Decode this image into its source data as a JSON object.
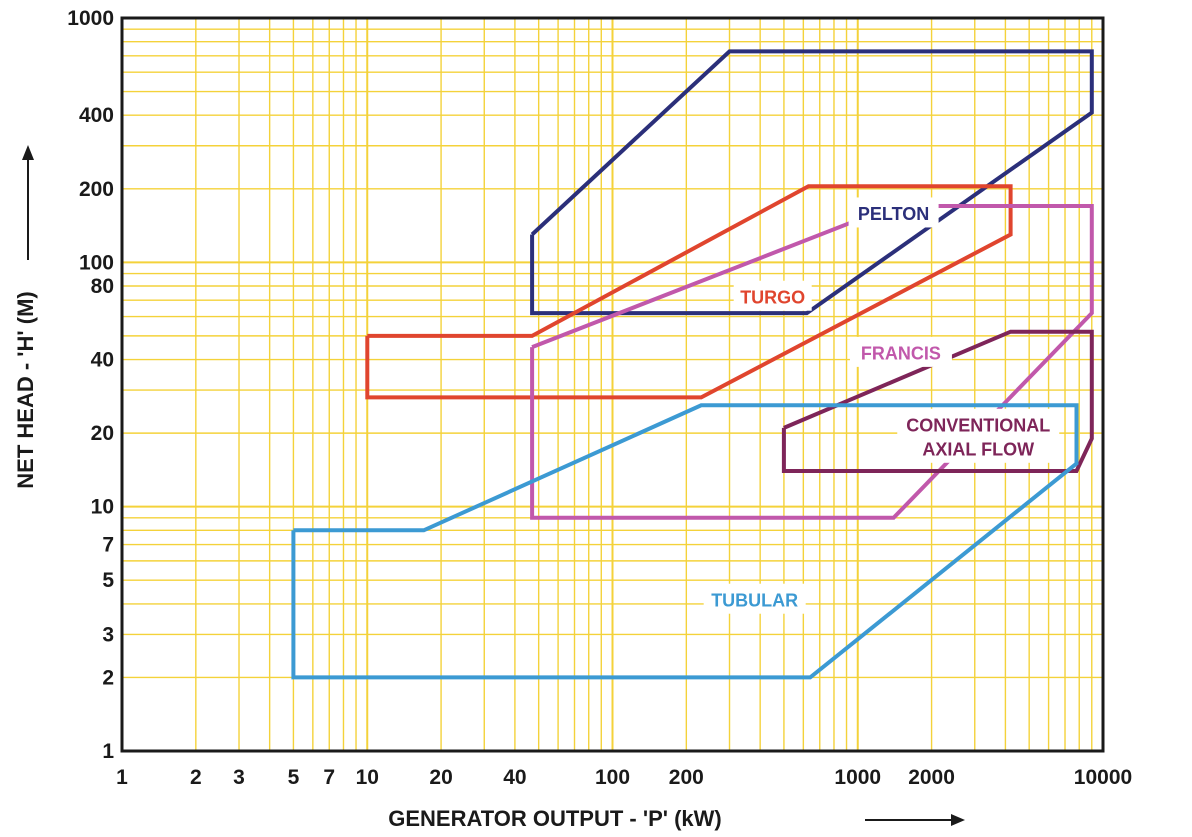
{
  "chart_data": {
    "type": "area",
    "title": "",
    "xlabel": "GENERATOR OUTPUT - 'P' (kW)",
    "ylabel": "NET HEAD - 'H' (M)",
    "xscale": "log",
    "yscale": "log",
    "xlim": [
      1,
      10000
    ],
    "ylim": [
      1,
      1000
    ],
    "grid": true,
    "x_ticks": [
      {
        "value": 1,
        "label": "1"
      },
      {
        "value": 2,
        "label": "2"
      },
      {
        "value": 3,
        "label": "3"
      },
      {
        "value": 5,
        "label": "5"
      },
      {
        "value": 7,
        "label": "7"
      },
      {
        "value": 10,
        "label": "10"
      },
      {
        "value": 20,
        "label": "20"
      },
      {
        "value": 40,
        "label": "40"
      },
      {
        "value": 100,
        "label": "100"
      },
      {
        "value": 200,
        "label": "200"
      },
      {
        "value": 1000,
        "label": "1000"
      },
      {
        "value": 2000,
        "label": "2000"
      },
      {
        "value": 10000,
        "label": "10000"
      }
    ],
    "y_ticks": [
      {
        "value": 1,
        "label": "1"
      },
      {
        "value": 2,
        "label": "2"
      },
      {
        "value": 3,
        "label": "3"
      },
      {
        "value": 5,
        "label": "5"
      },
      {
        "value": 7,
        "label": "7"
      },
      {
        "value": 10,
        "label": "10"
      },
      {
        "value": 20,
        "label": "20"
      },
      {
        "value": 40,
        "label": "40"
      },
      {
        "value": 80,
        "label": "80"
      },
      {
        "value": 100,
        "label": "100"
      },
      {
        "value": 200,
        "label": "200"
      },
      {
        "value": 400,
        "label": "400"
      },
      {
        "value": 1000,
        "label": "1000"
      }
    ],
    "series": [
      {
        "name": "PELTON",
        "color": "#2b2f7a",
        "label_at": {
          "x": 1400,
          "y": 160
        },
        "points": [
          [
            47,
            130
          ],
          [
            47,
            62
          ],
          [
            620,
            62
          ],
          [
            9000,
            410
          ],
          [
            9000,
            730
          ],
          [
            300,
            730
          ],
          [
            47,
            130
          ]
        ]
      },
      {
        "name": "TURGO",
        "color": "#e0452e",
        "label_at": {
          "x": 450,
          "y": 73
        },
        "points": [
          [
            10,
            50
          ],
          [
            10,
            28
          ],
          [
            230,
            28
          ],
          [
            4200,
            130
          ],
          [
            4200,
            205
          ],
          [
            630,
            205
          ],
          [
            47,
            50
          ],
          [
            10,
            50
          ]
        ]
      },
      {
        "name": "FRANCIS",
        "color": "#c158ab",
        "label_at": {
          "x": 1500,
          "y": 43
        },
        "points": [
          [
            47,
            45
          ],
          [
            47,
            9
          ],
          [
            1400,
            9
          ],
          [
            9000,
            62
          ],
          [
            9000,
            170
          ],
          [
            1400,
            170
          ],
          [
            47,
            45
          ]
        ]
      },
      {
        "name": "CONVENTIONAL AXIAL FLOW",
        "label_lines": [
          "CONVENTIONAL",
          "AXIAL FLOW"
        ],
        "color": "#7e2559",
        "label_at": {
          "x": 3100,
          "y": 19.5
        },
        "points": [
          [
            500,
            21
          ],
          [
            500,
            14
          ],
          [
            7800,
            14
          ],
          [
            9000,
            19
          ],
          [
            9000,
            52
          ],
          [
            4200,
            52
          ],
          [
            500,
            21
          ]
        ]
      },
      {
        "name": "TUBULAR",
        "color": "#3c9ad3",
        "label_at": {
          "x": 380,
          "y": 4.2
        },
        "points": [
          [
            5,
            8
          ],
          [
            5,
            2
          ],
          [
            640,
            2
          ],
          [
            7800,
            15
          ],
          [
            7800,
            26
          ],
          [
            230,
            26
          ],
          [
            17,
            8
          ],
          [
            5,
            8
          ]
        ]
      }
    ]
  }
}
